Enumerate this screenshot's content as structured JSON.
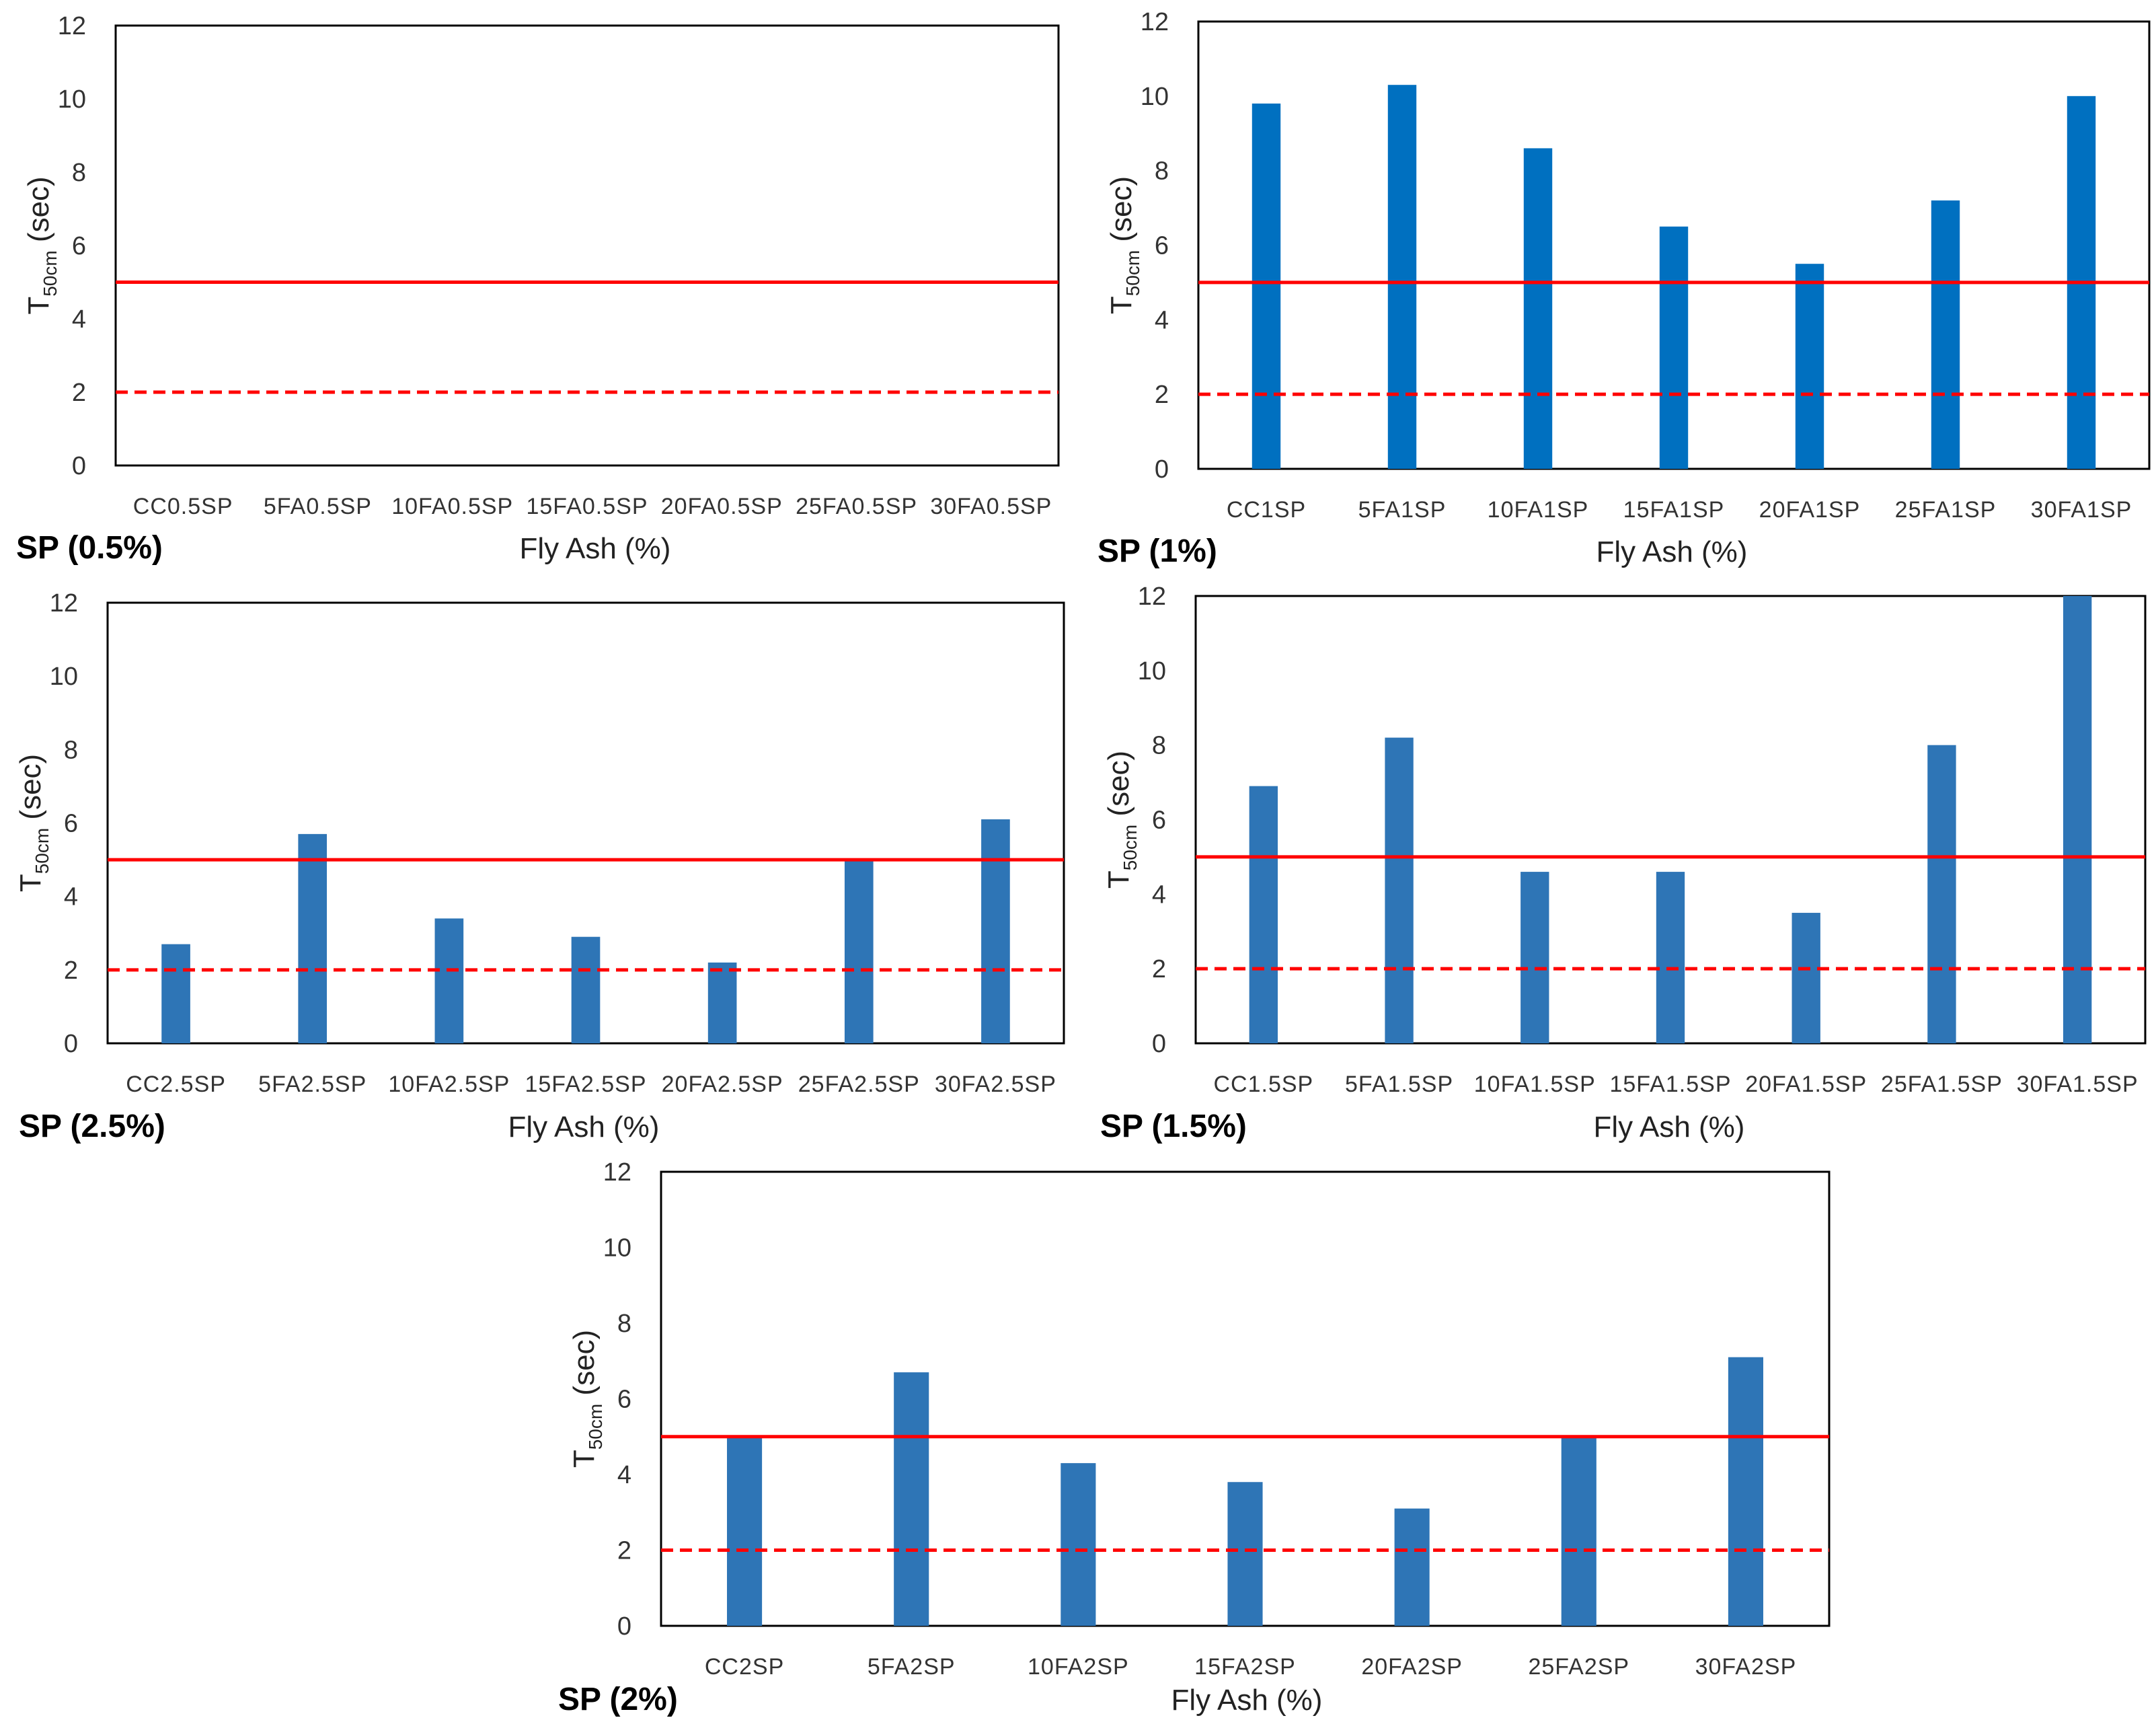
{
  "figure": {
    "description_free": true,
    "colors": {
      "bar": "#2e75b6",
      "bar_bright": "#0070c0",
      "upper_limit": "#ff0000",
      "lower_limit": "#ff0000",
      "axis": "#000000"
    }
  },
  "chart_data": [
    {
      "type": "bar",
      "panel_label": "SP (0.5%)",
      "xlabel": "Fly Ash (%)",
      "ylabel_main": "T",
      "ylabel_sub": "50cm",
      "ylabel_unit": " (sec)",
      "categories": [
        "CC0.5SP",
        "5FA0.5SP",
        "10FA0.5SP",
        "15FA0.5SP",
        "20FA0.5SP",
        "25FA0.5SP",
        "30FA0.5SP"
      ],
      "values": [
        null,
        null,
        null,
        null,
        null,
        null,
        null
      ],
      "ylim": [
        0,
        12
      ],
      "yticks": [
        "0",
        "2",
        "4",
        "6",
        "8",
        "10",
        "12"
      ],
      "reference_lines": [
        {
          "value": 5,
          "style": "solid"
        },
        {
          "value": 2,
          "style": "dashed"
        }
      ],
      "bar_color": "#2e75b6"
    },
    {
      "type": "bar",
      "panel_label": "SP (1%)",
      "xlabel": "Fly Ash (%)",
      "ylabel_main": "T",
      "ylabel_sub": "50cm",
      "ylabel_unit": " (sec)",
      "categories": [
        "CC1SP",
        "5FA1SP",
        "10FA1SP",
        "15FA1SP",
        "20FA1SP",
        "25FA1SP",
        "30FA1SP"
      ],
      "values": [
        9.8,
        10.3,
        8.6,
        6.5,
        5.5,
        7.2,
        10.0
      ],
      "ylim": [
        0,
        12
      ],
      "yticks": [
        "0",
        "2",
        "4",
        "6",
        "8",
        "10",
        "12"
      ],
      "reference_lines": [
        {
          "value": 5,
          "style": "solid"
        },
        {
          "value": 2,
          "style": "dashed"
        }
      ],
      "bar_color": "#0070c0"
    },
    {
      "type": "bar",
      "panel_label": "SP (2.5%)",
      "xlabel": "Fly Ash (%)",
      "ylabel_main": "T",
      "ylabel_sub": "50cm",
      "ylabel_unit": " (sec)",
      "categories": [
        "CC2.5SP",
        "5FA2.5SP",
        "10FA2.5SP",
        "15FA2.5SP",
        "20FA2.5SP",
        "25FA2.5SP",
        "30FA2.5SP"
      ],
      "values": [
        2.7,
        5.7,
        3.4,
        2.9,
        2.2,
        5.0,
        6.1
      ],
      "ylim": [
        0,
        12
      ],
      "yticks": [
        "0",
        "2",
        "4",
        "6",
        "8",
        "10",
        "12"
      ],
      "reference_lines": [
        {
          "value": 5,
          "style": "solid"
        },
        {
          "value": 2,
          "style": "dashed"
        }
      ],
      "bar_color": "#2e75b6"
    },
    {
      "type": "bar",
      "panel_label": "SP (1.5%)",
      "xlabel": "Fly Ash (%)",
      "ylabel_main": "T",
      "ylabel_sub": "50cm",
      "ylabel_unit": " (sec)",
      "categories": [
        "CC1.5SP",
        "5FA1.5SP",
        "10FA1.5SP",
        "15FA1.5SP",
        "20FA1.5SP",
        "25FA1.5SP",
        "30FA1.5SP"
      ],
      "values": [
        6.9,
        8.2,
        4.6,
        4.6,
        3.5,
        8.0,
        12.0
      ],
      "ylim": [
        0,
        12
      ],
      "yticks": [
        "0",
        "2",
        "4",
        "6",
        "8",
        "10",
        "12"
      ],
      "reference_lines": [
        {
          "value": 5,
          "style": "solid"
        },
        {
          "value": 2,
          "style": "dashed"
        }
      ],
      "bar_color": "#2e75b6"
    },
    {
      "type": "bar",
      "panel_label": "SP (2%)",
      "xlabel": "Fly Ash (%)",
      "ylabel_main": "T",
      "ylabel_sub": "50cm",
      "ylabel_unit": " (sec)",
      "categories": [
        "CC2SP",
        "5FA2SP",
        "10FA2SP",
        "15FA2SP",
        "20FA2SP",
        "25FA2SP",
        "30FA2SP"
      ],
      "values": [
        5.0,
        6.7,
        4.3,
        3.8,
        3.1,
        5.0,
        7.1
      ],
      "ylim": [
        0,
        12
      ],
      "yticks": [
        "0",
        "2",
        "4",
        "6",
        "8",
        "10",
        "12"
      ],
      "reference_lines": [
        {
          "value": 5,
          "style": "solid"
        },
        {
          "value": 2,
          "style": "dashed"
        }
      ],
      "bar_color": "#2e75b6"
    }
  ]
}
